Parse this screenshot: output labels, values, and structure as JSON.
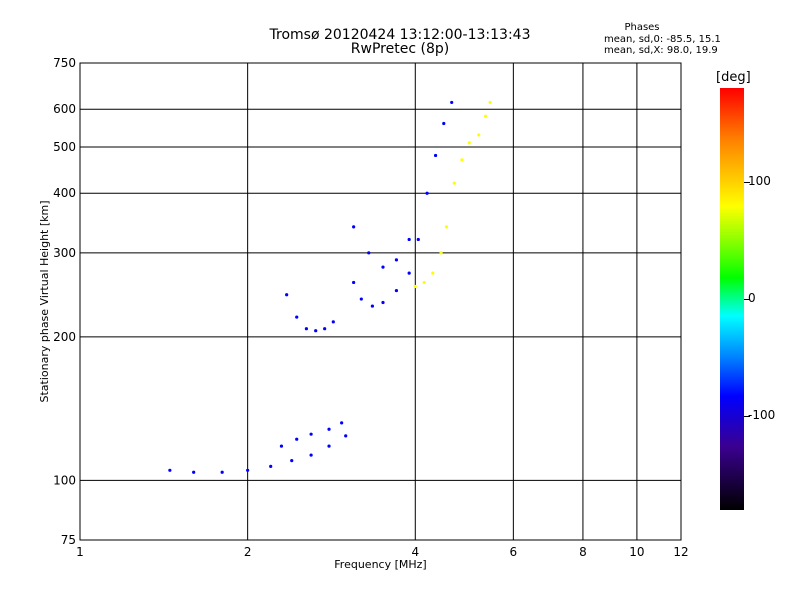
{
  "header": {
    "title": "Tromsø 20120424 13:12:00-13:13:43",
    "subtitle": "RwPretec (8p)"
  },
  "phases_box": {
    "title": "Phases",
    "line_0": "mean, sd,0: -85.5, 15.1",
    "line_x": "mean, sd,X: 98.0, 19.9"
  },
  "colorbar": {
    "title": "[deg]",
    "range": [
      -180,
      180
    ],
    "ticks": [
      "100",
      "0",
      "-100"
    ],
    "tick_values": [
      100,
      0,
      -100
    ]
  },
  "chart_data": {
    "type": "scatter",
    "xlabel": "Frequency [MHz]",
    "ylabel": "Stationary phase Virtual Height [km]",
    "x_scale": "log",
    "y_scale": "log",
    "xlim": [
      1,
      12
    ],
    "ylim": [
      75,
      750
    ],
    "grid": true,
    "x_ticks": [
      1,
      2,
      4,
      6,
      8,
      10,
      12
    ],
    "x_tick_labels": [
      "1",
      "2",
      "4",
      "6",
      "8",
      "10",
      "12"
    ],
    "y_ticks": [
      75,
      100,
      200,
      300,
      400,
      500,
      600,
      750
    ],
    "y_tick_labels": [
      "75",
      "100",
      "200",
      "300",
      "400",
      "500",
      "600",
      "750"
    ],
    "x_gridlines": [
      2,
      4,
      6,
      8,
      10
    ],
    "y_gridlines": [
      100,
      200,
      300,
      400,
      500,
      600
    ],
    "colorbar_label": "[deg]",
    "series": [
      {
        "phase": -95,
        "x": [
          1.45,
          1.6,
          1.8,
          2.0,
          2.2,
          2.4,
          2.6,
          2.8,
          3.0
        ],
        "y": [
          105,
          104,
          104,
          105,
          107,
          110,
          113,
          118,
          124
        ]
      },
      {
        "phase": -90,
        "x": [
          2.3,
          2.45,
          2.6,
          2.8,
          2.95
        ],
        "y": [
          118,
          122,
          125,
          128,
          132
        ]
      },
      {
        "phase": -80,
        "x": [
          2.35,
          2.45,
          2.55,
          2.65,
          2.75,
          2.85
        ],
        "y": [
          245,
          220,
          208,
          206,
          208,
          215
        ]
      },
      {
        "phase": -110,
        "x": [
          3.1,
          3.2,
          3.35,
          3.5,
          3.7,
          3.9,
          4.05,
          4.2,
          4.35,
          4.5,
          4.65
        ],
        "y": [
          260,
          240,
          232,
          236,
          250,
          272,
          320,
          400,
          480,
          560,
          620
        ]
      },
      {
        "phase": -115,
        "x": [
          3.1,
          3.3,
          3.5,
          3.7,
          3.9
        ],
        "y": [
          340,
          300,
          280,
          290,
          320
        ]
      },
      {
        "phase": 100,
        "x": [
          4.0,
          4.15,
          4.3,
          4.45,
          4.55,
          4.7,
          4.85,
          5.0,
          5.2,
          5.35,
          5.45
        ],
        "y": [
          255,
          260,
          272,
          300,
          340,
          420,
          470,
          510,
          530,
          580,
          620
        ]
      }
    ]
  }
}
